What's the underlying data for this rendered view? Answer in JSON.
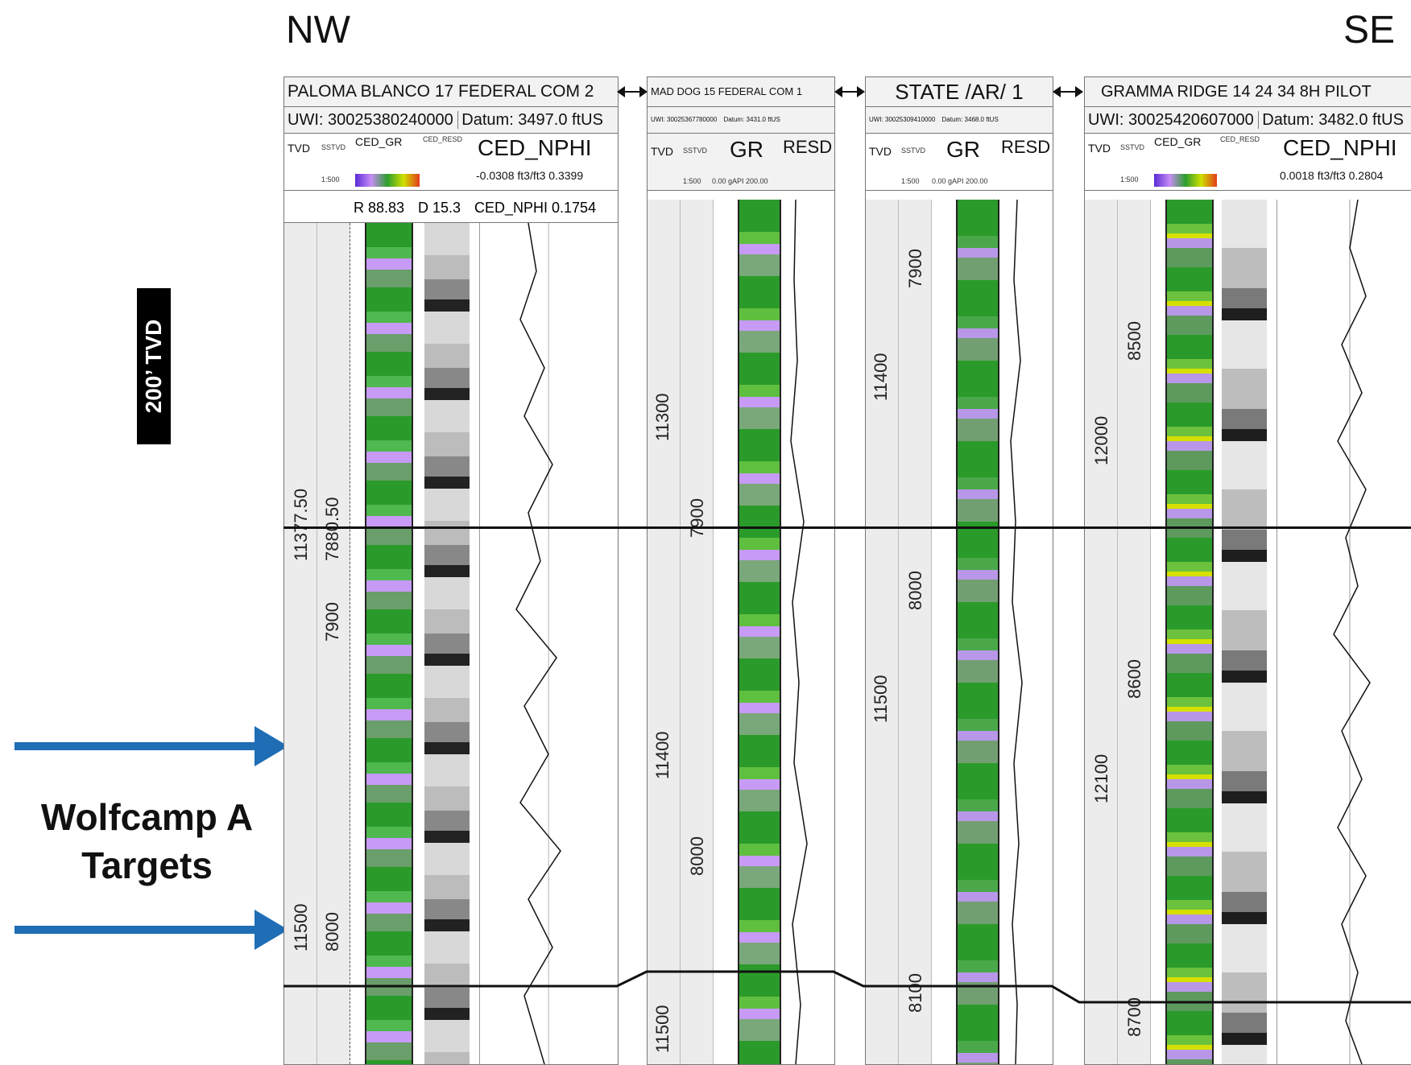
{
  "directions": {
    "left": "NW",
    "right": "SE"
  },
  "scale_bar": {
    "label": "200’ TVD"
  },
  "target_annotation": {
    "line1": "Wolfcamp A",
    "line2": "Targets"
  },
  "wells": [
    {
      "name": "PALOMA BLANCO 17 FEDERAL COM 2",
      "uwi": "UWI: 30025380240000",
      "datum": "Datum: 3497.0 ftUS",
      "tvd_label": "TVD",
      "sstvd_label": "SSTVD",
      "scale": "1:500",
      "gr_label": "CED_GR",
      "res_label": "CED_RESD",
      "nphi_label": "CED_NPHI",
      "nphi_range": "-0.0308 ft3/ft3 0.3399",
      "readout": [
        "R 88.83",
        "D 15.3",
        "CED_NPHI 0.1754"
      ],
      "tvd_ticks": [
        "11377.50",
        "11500"
      ],
      "sstvd_ticks": [
        "7880.50",
        "7900",
        "8000"
      ]
    },
    {
      "name": "MAD DOG 15 FEDERAL COM 1",
      "uwi": "UWI: 30025367780000",
      "datum": "Datum: 3431.0 ftUS",
      "tvd_label": "TVD",
      "sstvd_label": "SSTVD",
      "scale": "1:500",
      "gr_label": "GR",
      "res_label": "RESD",
      "gr_range": "0.00 gAPI 200.00",
      "tvd_ticks": [
        "11300",
        "11400",
        "11500"
      ],
      "sstvd_ticks": [
        "7900",
        "8000"
      ]
    },
    {
      "name": "STATE /AR/ 1",
      "uwi": "UWI: 30025309410000",
      "datum": "Datum: 3468.0 ftUS",
      "tvd_label": "TVD",
      "sstvd_label": "SSTVD",
      "scale": "1:500",
      "gr_label": "GR",
      "res_label": "RESD",
      "gr_range": "0.00 gAPI 200.00",
      "tvd_ticks": [
        "11400",
        "11500"
      ],
      "sstvd_ticks": [
        "7900",
        "8000",
        "8100"
      ]
    },
    {
      "name": "GRAMMA RIDGE 14 24 34 8H PILOT",
      "uwi": "UWI: 30025420607000",
      "datum": "Datum: 3482.0 ftUS",
      "tvd_label": "TVD",
      "sstvd_label": "SSTVD",
      "scale": "1:500",
      "gr_label": "CED_GR",
      "res_label": "CED_RESD",
      "nphi_label": "CED_NPHI",
      "nphi_range": "0.0018 ft3/ft3 0.2804",
      "tvd_ticks": [
        "12000",
        "12100"
      ],
      "sstvd_ticks": [
        "8500",
        "8600",
        "8700"
      ]
    }
  ]
}
